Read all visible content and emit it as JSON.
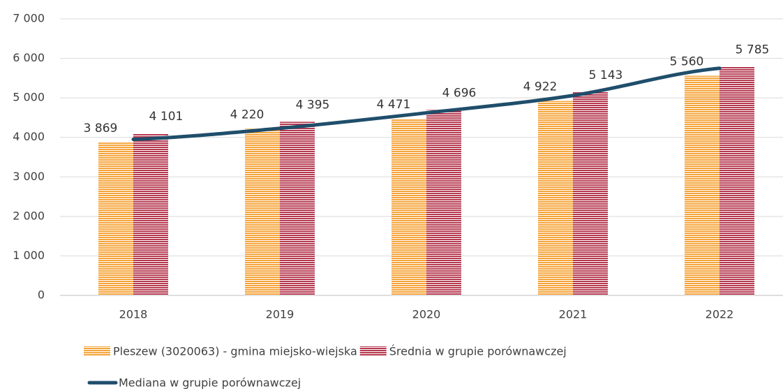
{
  "chart_data": {
    "type": "bar",
    "categories": [
      "2018",
      "2019",
      "2020",
      "2021",
      "2022"
    ],
    "series": [
      {
        "name": "Pleszew (3020063) - gmina miejsko-wiejska",
        "color": "#f5a43a",
        "values": [
          3869,
          4220,
          4471,
          4922,
          5560
        ],
        "value_labels": [
          "3 869",
          "4 220",
          "4 471",
          "4 922",
          "5 560"
        ]
      },
      {
        "name": "Średnia w grupie porównawczej",
        "color": "#b5384f",
        "values": [
          4101,
          4395,
          4696,
          5143,
          5785
        ],
        "value_labels": [
          "4 101",
          "4 395",
          "4 696",
          "5 143",
          "5 785"
        ]
      },
      {
        "name": "Mediana w grupie porównawczej",
        "color": "#1f4e6b",
        "type": "line",
        "values": [
          3950,
          4230,
          4620,
          5060,
          5750
        ]
      }
    ],
    "ylim": [
      0,
      7000
    ],
    "yticks": [
      0,
      {
        "value": 1000,
        "label": "1 000"
      },
      {
        "value": 2000,
        "label": "2 000"
      },
      {
        "value": 3000,
        "label": "3 000"
      },
      {
        "value": 4000,
        "label": "4 000"
      },
      {
        "value": 5000,
        "label": "5 000"
      },
      {
        "value": 6000,
        "label": "6 000"
      },
      {
        "value": 7000,
        "label": "7 000"
      }
    ],
    "grid": true
  }
}
